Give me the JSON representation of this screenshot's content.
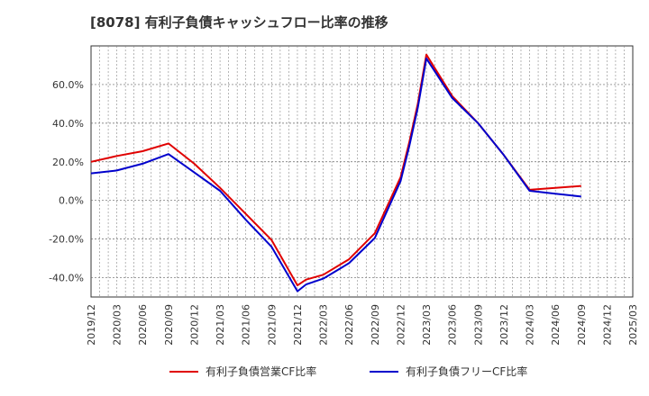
{
  "chart_data": {
    "type": "line",
    "title": "[8078]  有利子負債キャッシュフロー比率の推移",
    "xlabel": "",
    "ylabel": "",
    "ylim": [
      -50,
      80
    ],
    "y_ticks": [
      -40,
      -20,
      0,
      20,
      40,
      60
    ],
    "y_tick_labels": [
      "-40.0%",
      "-20.0%",
      "0.0%",
      "20.0%",
      "40.0%",
      "60.0%"
    ],
    "x_tick_labels": [
      "2019/12",
      "2020/03",
      "2020/06",
      "2020/09",
      "2020/12",
      "2021/03",
      "2021/06",
      "2021/09",
      "2021/12",
      "2022/03",
      "2022/06",
      "2022/09",
      "2022/12",
      "2023/03",
      "2023/06",
      "2023/09",
      "2023/12",
      "2024/03",
      "2024/06",
      "2024/09",
      "2024/12",
      "2025/03"
    ],
    "grid": true,
    "legend_position": "bottom",
    "series": [
      {
        "name": "有利子負債営業CF比率",
        "color": "#e00000",
        "x": [
          "2019/12",
          "2020/03",
          "2020/06",
          "2020/09",
          "2020/12",
          "2021/03",
          "2021/06",
          "2021/09",
          "2021/12",
          "2022/01",
          "2022/03",
          "2022/06",
          "2022/09",
          "2022/12",
          "2023/01",
          "2023/02",
          "2023/03",
          "2023/06",
          "2023/09",
          "2023/12",
          "2024/03",
          "2024/06",
          "2024/09"
        ],
        "values": [
          20,
          23,
          25.5,
          29.5,
          19,
          6.5,
          -7,
          -20.5,
          -44,
          -41,
          -38.5,
          -30.5,
          -17,
          12,
          30,
          50,
          75.5,
          54,
          40,
          23.5,
          5.5,
          6.5,
          7.5
        ]
      },
      {
        "name": "有利子負債フリーCF比率",
        "color": "#0000cc",
        "x": [
          "2019/12",
          "2020/03",
          "2020/06",
          "2020/09",
          "2020/12",
          "2021/03",
          "2021/06",
          "2021/09",
          "2021/12",
          "2022/01",
          "2022/03",
          "2022/06",
          "2022/09",
          "2022/12",
          "2023/01",
          "2023/02",
          "2023/03",
          "2023/06",
          "2023/09",
          "2023/12",
          "2024/03",
          "2024/06",
          "2024/09"
        ],
        "values": [
          14,
          15.5,
          19,
          24,
          14.5,
          5,
          -10,
          -24,
          -47,
          -43.5,
          -40.5,
          -32.5,
          -19.5,
          10,
          28,
          48,
          73.5,
          53,
          40,
          23.5,
          5,
          3.5,
          2
        ]
      }
    ]
  }
}
